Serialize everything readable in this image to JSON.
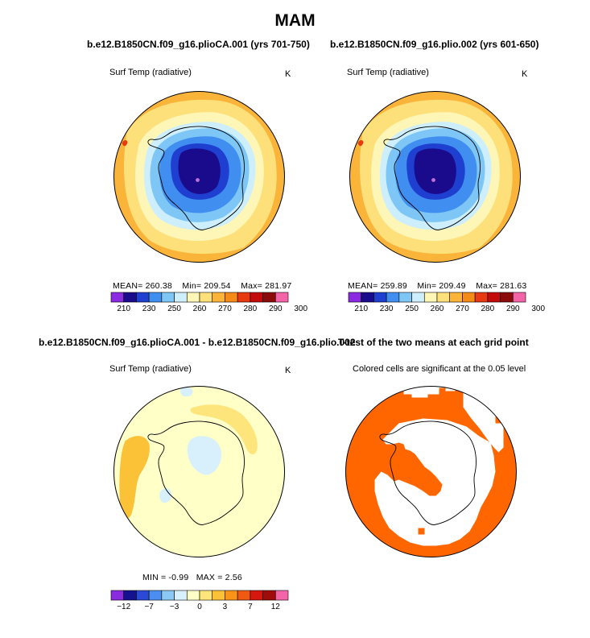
{
  "figure": {
    "season_title": "MAM",
    "panels": [
      {
        "title": "b.e12.B1850CN.f09_g16.plioCA.001 (yrs 701-750)",
        "variable": "Surf Temp (radiative)",
        "units": "K",
        "stats": {
          "mean_label": "MEAN=",
          "mean": "260.38",
          "min_label": "Min=",
          "min": "209.54",
          "max_label": "Max=",
          "max": "281.97"
        }
      },
      {
        "title": "b.e12.B1850CN.f09_g16.plio.002 (yrs 601-650)",
        "variable": "Surf Temp (radiative)",
        "units": "K",
        "stats": {
          "mean_label": "MEAN=",
          "mean": "259.89",
          "min_label": "Min=",
          "min": "209.49",
          "max_label": "Max=",
          "max": "281.63"
        }
      },
      {
        "title": "b.e12.B1850CN.f09_g16.plioCA.001 - b.e12.B1850CN.f09_g16.plio.002",
        "variable": "Surf Temp (radiative)",
        "units": "K",
        "stats": {
          "min_label": "MIN =",
          "min": "-0.99",
          "max_label": "MAX =",
          "max": "2.56"
        }
      },
      {
        "title": "T-test of the two means at each grid point",
        "subtitle": "Colored cells are significant at the 0.05 level"
      }
    ]
  },
  "colors": {
    "abs_scale": [
      "#8a2be2",
      "#1a0a8c",
      "#1e3fd0",
      "#3f8ef0",
      "#7ec6f5",
      "#cdeefc",
      "#fdf6b7",
      "#fde07a",
      "#fbb43a",
      "#f48a17",
      "#e83a10",
      "#c40b0b",
      "#8b0b0b",
      "#f465a8"
    ],
    "diff_scale": [
      "#8a2be2",
      "#14128f",
      "#2b49d6",
      "#4c8ef0",
      "#8cc8f6",
      "#d8f0fb",
      "#ffffc8",
      "#fde57b",
      "#fcc237",
      "#f89518",
      "#ee5a14",
      "#d4170f",
      "#a00b0b",
      "#f465a8"
    ],
    "significance": "#ff6600",
    "coast": "#000000"
  },
  "chart_data": [
    {
      "type": "heatmap",
      "projection": "south-polar-stereographic",
      "title": "b.e12.B1850CN.f09_g16.plioCA.001 (yrs 701-750)",
      "variable": "Surf Temp (radiative)",
      "units": "K",
      "stats": {
        "mean": 260.38,
        "min": 209.54,
        "max": 281.97
      },
      "colorbar": {
        "levels": [
          210,
          230,
          250,
          260,
          270,
          280,
          290,
          300
        ],
        "ticks": [
          "210",
          "230",
          "250",
          "260",
          "270",
          "280",
          "290",
          "300"
        ]
      }
    },
    {
      "type": "heatmap",
      "projection": "south-polar-stereographic",
      "title": "b.e12.B1850CN.f09_g16.plio.002 (yrs 601-650)",
      "variable": "Surf Temp (radiative)",
      "units": "K",
      "stats": {
        "mean": 259.89,
        "min": 209.49,
        "max": 281.63
      },
      "colorbar": {
        "levels": [
          210,
          230,
          250,
          260,
          270,
          280,
          290,
          300
        ],
        "ticks": [
          "210",
          "230",
          "250",
          "260",
          "270",
          "280",
          "290",
          "300"
        ]
      }
    },
    {
      "type": "heatmap",
      "projection": "south-polar-stereographic",
      "title": "b.e12.B1850CN.f09_g16.plioCA.001 - b.e12.B1850CN.f09_g16.plio.002",
      "variable": "Surf Temp (radiative)",
      "units": "K",
      "stats": {
        "min": -0.99,
        "max": 2.56
      },
      "colorbar": {
        "levels": [
          -12,
          -7,
          -3,
          0,
          3,
          7,
          12
        ],
        "ticks": [
          "−12",
          "−7",
          "−3",
          "0",
          "3",
          "7",
          "12"
        ]
      }
    },
    {
      "type": "heatmap",
      "projection": "south-polar-stereographic",
      "title": "T-test of the two means at each grid point",
      "subtitle": "Colored cells are significant at the 0.05 level",
      "significance_level": 0.05
    }
  ]
}
